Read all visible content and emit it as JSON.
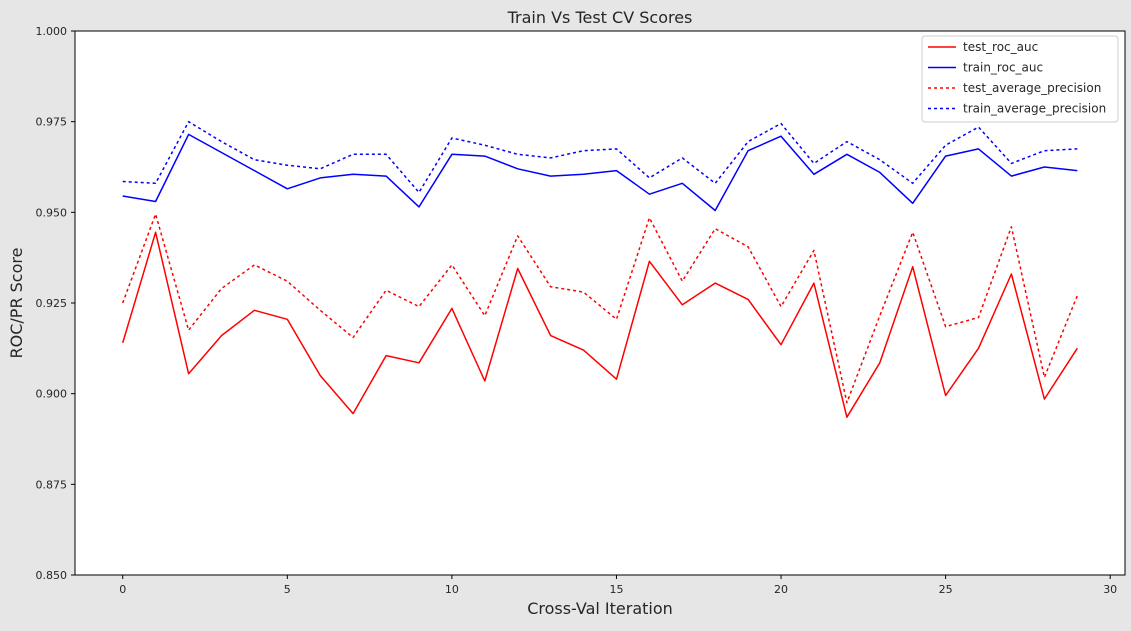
{
  "chart_data": {
    "type": "line",
    "title": "Train Vs Test CV Scores",
    "xlabel": "Cross-Val Iteration",
    "ylabel": "ROC/PR Score",
    "xlim": [
      -1.45,
      30.45
    ],
    "ylim": [
      0.85,
      1.0
    ],
    "xticks": [
      0,
      5,
      10,
      15,
      20,
      25,
      30
    ],
    "yticks": [
      0.85,
      0.875,
      0.9,
      0.925,
      0.95,
      0.975,
      1.0
    ],
    "xtick_labels": [
      "0",
      "5",
      "10",
      "15",
      "20",
      "25",
      "30"
    ],
    "ytick_labels": [
      "0.850",
      "0.875",
      "0.900",
      "0.925",
      "0.950",
      "0.975",
      "1.000"
    ],
    "grid": false,
    "legend_position": "top-right",
    "x": [
      0,
      1,
      2,
      3,
      4,
      5,
      6,
      7,
      8,
      9,
      10,
      11,
      12,
      13,
      14,
      15,
      16,
      17,
      18,
      19,
      20,
      21,
      22,
      23,
      24,
      25,
      26,
      27,
      28,
      29
    ],
    "series": [
      {
        "name": "test_roc_auc",
        "color": "#ff0000",
        "dash": "solid",
        "values": [
          0.914,
          0.9445,
          0.9055,
          0.916,
          0.923,
          0.9205,
          0.905,
          0.8945,
          0.9105,
          0.9085,
          0.9235,
          0.9035,
          0.9345,
          0.916,
          0.912,
          0.904,
          0.9365,
          0.9245,
          0.9305,
          0.926,
          0.9135,
          0.9305,
          0.8935,
          0.9085,
          0.935,
          0.8995,
          0.9125,
          0.933,
          0.8985,
          0.9125
        ]
      },
      {
        "name": "train_roc_auc",
        "color": "#0000ff",
        "dash": "solid",
        "values": [
          0.9545,
          0.953,
          0.9715,
          0.9665,
          0.9615,
          0.9565,
          0.9595,
          0.9605,
          0.96,
          0.9515,
          0.966,
          0.9655,
          0.962,
          0.96,
          0.9605,
          0.9615,
          0.955,
          0.958,
          0.9505,
          0.967,
          0.971,
          0.9605,
          0.966,
          0.961,
          0.9525,
          0.9655,
          0.9675,
          0.96,
          0.9625,
          0.9615
        ]
      },
      {
        "name": "test_average_precision",
        "color": "#ff0000",
        "dash": "dotted",
        "values": [
          0.925,
          0.9495,
          0.9175,
          0.929,
          0.9355,
          0.931,
          0.923,
          0.9155,
          0.9285,
          0.924,
          0.9355,
          0.9215,
          0.9435,
          0.9295,
          0.928,
          0.9205,
          0.9485,
          0.931,
          0.9455,
          0.9405,
          0.924,
          0.9395,
          0.8975,
          0.9215,
          0.9445,
          0.9185,
          0.921,
          0.946,
          0.9045,
          0.927
        ]
      },
      {
        "name": "train_average_precision",
        "color": "#0000ff",
        "dash": "dotted",
        "values": [
          0.9585,
          0.958,
          0.975,
          0.9695,
          0.9645,
          0.963,
          0.962,
          0.966,
          0.966,
          0.9555,
          0.9705,
          0.9685,
          0.966,
          0.965,
          0.967,
          0.9675,
          0.9595,
          0.965,
          0.958,
          0.9695,
          0.9745,
          0.9635,
          0.9695,
          0.9645,
          0.958,
          0.9685,
          0.9735,
          0.9635,
          0.967,
          0.9675
        ]
      }
    ]
  }
}
